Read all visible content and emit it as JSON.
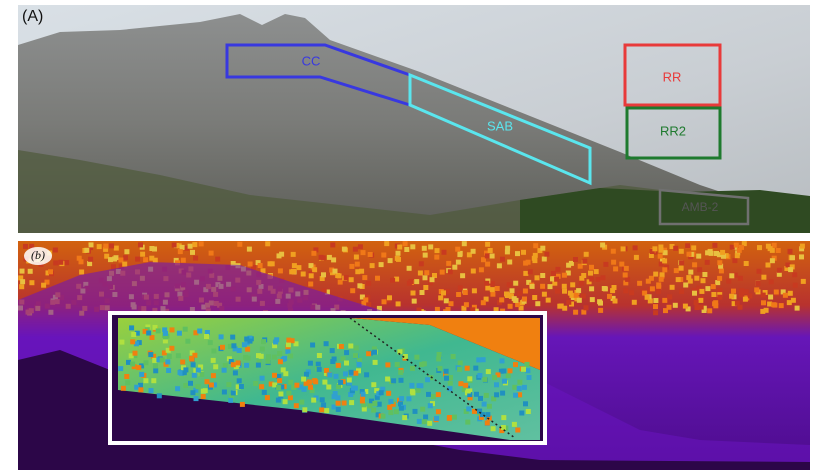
{
  "panel_a": {
    "label": "(A)",
    "regions": [
      {
        "label": "CC"
      },
      {
        "label": "SAB"
      },
      {
        "label": "RR"
      },
      {
        "label": "RR2"
      },
      {
        "label": "AMB-2"
      }
    ]
  },
  "panel_b": {
    "label": "(b)"
  }
}
